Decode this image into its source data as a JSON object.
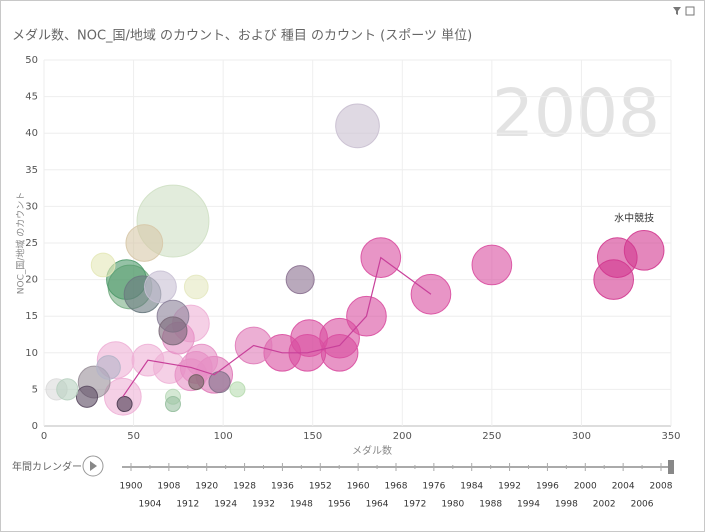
{
  "chart_data": {
    "type": "bubble",
    "title": "メダル数、NOC_国/地域 のカウント、および 種目 のカウント (スポーツ 単位)",
    "x_label": "メダル数",
    "y_label": "NOC_国/地域 のカウント",
    "year": "2008",
    "annotation": "水中競技",
    "xlim": [
      0,
      350
    ],
    "xticks": [
      0,
      50,
      100,
      150,
      200,
      250,
      300,
      350
    ],
    "ylim": [
      0,
      50
    ],
    "yticks": [
      0,
      5,
      10,
      15,
      20,
      25,
      30,
      35,
      40,
      45,
      50
    ],
    "grid": true,
    "x": [
      335,
      320,
      318,
      250,
      216,
      188,
      180,
      165,
      165,
      148,
      147,
      133,
      117,
      95,
      40,
      44,
      82,
      70,
      75,
      88,
      85,
      82,
      58,
      175,
      143,
      72,
      56,
      33,
      46,
      48,
      55,
      65,
      72,
      85,
      72,
      36,
      28,
      24,
      7,
      13,
      45,
      72,
      72,
      98,
      108,
      85
    ],
    "values": [
      24,
      23,
      20,
      22,
      18,
      23,
      15,
      12,
      10,
      12,
      10,
      10,
      11,
      7,
      9,
      4,
      14,
      8,
      12,
      9,
      8,
      7,
      9,
      41,
      20,
      28,
      25,
      22,
      20,
      19,
      18,
      19,
      15,
      19,
      13,
      8,
      6,
      4,
      5,
      5,
      3,
      4,
      3,
      6,
      5,
      6
    ],
    "sizes": [
      14,
      14,
      14,
      14,
      14,
      14,
      14,
      14,
      12,
      12,
      12,
      12,
      12,
      12,
      12,
      12,
      12,
      9,
      9,
      9,
      9,
      9,
      9,
      17,
      7,
      46,
      12,
      5,
      14,
      17,
      12,
      9,
      9,
      5,
      7,
      5,
      9,
      4,
      4,
      4,
      2,
      2,
      2,
      4,
      2,
      2
    ],
    "colors": [
      "#d2378f",
      "#d2378f",
      "#d2378f",
      "#d94ea0",
      "#d94ea0",
      "#d94ea0",
      "#d94ea0",
      "#d94ea0",
      "#d94ea0",
      "#d94ea0",
      "#d94ea0",
      "#d94ea0",
      "#e07ab8",
      "#e07ab8",
      "#eeb0d6",
      "#eeb0d6",
      "#eeb0d6",
      "#eeb0d6",
      "#e690c4",
      "#e690c4",
      "#e690c4",
      "#e690c4",
      "#eeb0d6",
      "#c9bfd0",
      "#8a7090",
      "#cfe0c4",
      "#d7c8a8",
      "#e4e8b8",
      "#4e9a6a",
      "#7aaf86",
      "#6a7a80",
      "#c8c0d4",
      "#8a8098",
      "#e4e8c0",
      "#7a6878",
      "#b4b4c8",
      "#9a909a",
      "#5a4a60",
      "#dadada",
      "#b8d0c0",
      "#4a3a50",
      "#b8d8b8",
      "#98c0a0",
      "#807088",
      "#b8dcb0",
      "#706060"
    ],
    "trail": {
      "x": [
        44,
        58,
        82,
        95,
        117,
        133,
        147,
        165,
        180,
        188,
        216
      ],
      "y": [
        4,
        9,
        8,
        7,
        11,
        10,
        10,
        11,
        15,
        23,
        18
      ]
    },
    "play_label": "年間カレンダー",
    "timeline_top": [
      "1900",
      "1908",
      "1920",
      "1928",
      "1936",
      "1952",
      "1960",
      "1968",
      "1976",
      "1984",
      "1992",
      "1996",
      "2000",
      "2004",
      "2008"
    ],
    "timeline_bottom": [
      "1904",
      "1912",
      "1924",
      "1932",
      "1948",
      "1956",
      "1964",
      "1972",
      "1980",
      "1988",
      "1994",
      "1998",
      "2002",
      "2006"
    ]
  }
}
